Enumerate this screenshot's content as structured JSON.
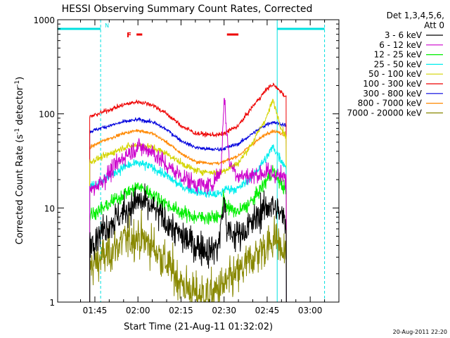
{
  "chart_data": {
    "type": "line",
    "title": "HESSI Observing Summary Count Rates, Corrected",
    "xlabel": "Start Time (21-Aug-11 01:32:02)",
    "ylabel_main": "Corrected Count Rate (s",
    "ylabel_sup1": "-1",
    "ylabel_mid": " detector",
    "ylabel_sup2": "-1",
    "ylabel_end": ")",
    "x_range": [
      "01:32:02",
      "03:10:00"
    ],
    "ylim": [
      1,
      1000
    ],
    "yscale": "log",
    "x_ticks": [
      "01:45",
      "02:00",
      "02:15",
      "02:30",
      "02:45",
      "03:00"
    ],
    "y_ticks": [
      "1",
      "10",
      "100",
      "1000"
    ],
    "legend": {
      "placement": "right",
      "header1": "Det 1,3,4,5,6,",
      "header2": "Att 0",
      "entries": [
        {
          "label": "3 - 6 keV",
          "color": "#000000"
        },
        {
          "label": "6 - 12 keV",
          "color": "#cc00cc"
        },
        {
          "label": "12 - 25 keV",
          "color": "#00ee00"
        },
        {
          "label": "25 - 50 keV",
          "color": "#00eeee"
        },
        {
          "label": "50 - 100 keV",
          "color": "#d4d400"
        },
        {
          "label": "100 - 300 keV",
          "color": "#ee0000"
        },
        {
          "label": "300 - 800 keV",
          "color": "#0000dd"
        },
        {
          "label": "800 - 7000 keV",
          "color": "#ff8800"
        },
        {
          "label": "7000 - 20000 keV",
          "color": "#888800"
        }
      ]
    },
    "annotations": {
      "night_label": "N",
      "flag_label": "F",
      "saa_night_color": "#00e0e0",
      "flag_color": "#ee0000",
      "night_intervals": [
        [
          "01:32:02",
          "01:47:00"
        ],
        [
          "02:48:30",
          "03:05:00"
        ]
      ],
      "daylight_start": "01:47:00",
      "daylight_end": "02:48:30",
      "flag_intervals": [
        [
          "01:59:30",
          "02:01:30"
        ],
        [
          "02:31:00",
          "02:35:00"
        ]
      ]
    },
    "series": [
      {
        "name": "3 - 6 keV",
        "color": "#000000",
        "noise": 0.35,
        "points": [
          [
            "01:42",
            4
          ],
          [
            "01:48",
            6
          ],
          [
            "01:55",
            9
          ],
          [
            "02:00",
            12
          ],
          [
            "02:05",
            10
          ],
          [
            "02:10",
            7
          ],
          [
            "02:15",
            5
          ],
          [
            "02:20",
            4
          ],
          [
            "02:25",
            3.5
          ],
          [
            "02:28",
            4
          ],
          [
            "02:30",
            12
          ],
          [
            "02:31",
            6
          ],
          [
            "02:33",
            5
          ],
          [
            "02:38",
            6
          ],
          [
            "02:43",
            9
          ],
          [
            "02:46",
            11
          ],
          [
            "02:49",
            9
          ],
          [
            "02:52",
            7
          ]
        ]
      },
      {
        "name": "6 - 12 keV",
        "color": "#cc00cc",
        "noise": 0.2,
        "points": [
          [
            "01:42",
            14
          ],
          [
            "01:48",
            20
          ],
          [
            "01:55",
            35
          ],
          [
            "02:00",
            45
          ],
          [
            "02:05",
            40
          ],
          [
            "02:10",
            28
          ],
          [
            "02:15",
            22
          ],
          [
            "02:20",
            18
          ],
          [
            "02:25",
            17
          ],
          [
            "02:29",
            25
          ],
          [
            "02:30",
            160
          ],
          [
            "02:31",
            60
          ],
          [
            "02:32",
            30
          ],
          [
            "02:35",
            22
          ],
          [
            "02:40",
            22
          ],
          [
            "02:45",
            24
          ],
          [
            "02:49",
            22
          ],
          [
            "02:52",
            20
          ]
        ]
      },
      {
        "name": "12 - 25 keV",
        "color": "#00ee00",
        "noise": 0.15,
        "points": [
          [
            "01:42",
            8
          ],
          [
            "01:48",
            10
          ],
          [
            "01:55",
            14
          ],
          [
            "02:00",
            17
          ],
          [
            "02:05",
            14
          ],
          [
            "02:10",
            11
          ],
          [
            "02:15",
            9
          ],
          [
            "02:20",
            8
          ],
          [
            "02:25",
            8
          ],
          [
            "02:29",
            8
          ],
          [
            "02:30",
            14
          ],
          [
            "02:31",
            10
          ],
          [
            "02:35",
            9
          ],
          [
            "02:40",
            12
          ],
          [
            "02:45",
            20
          ],
          [
            "02:47",
            25
          ],
          [
            "02:50",
            18
          ],
          [
            "02:52",
            14
          ]
        ]
      },
      {
        "name": "25 - 50 keV",
        "color": "#00eeee",
        "noise": 0.1,
        "points": [
          [
            "01:42",
            16
          ],
          [
            "01:48",
            20
          ],
          [
            "01:55",
            27
          ],
          [
            "02:00",
            30
          ],
          [
            "02:05",
            27
          ],
          [
            "02:10",
            22
          ],
          [
            "02:15",
            17
          ],
          [
            "02:20",
            15
          ],
          [
            "02:25",
            14
          ],
          [
            "02:29",
            14
          ],
          [
            "02:30",
            16
          ],
          [
            "02:35",
            16
          ],
          [
            "02:40",
            22
          ],
          [
            "02:45",
            35
          ],
          [
            "02:47",
            45
          ],
          [
            "02:50",
            32
          ],
          [
            "02:52",
            26
          ]
        ]
      },
      {
        "name": "50 - 100 keV",
        "color": "#d4d400",
        "noise": 0.07,
        "points": [
          [
            "01:42",
            30
          ],
          [
            "01:48",
            35
          ],
          [
            "01:55",
            44
          ],
          [
            "02:00",
            47
          ],
          [
            "02:05",
            44
          ],
          [
            "02:10",
            38
          ],
          [
            "02:15",
            30
          ],
          [
            "02:20",
            25
          ],
          [
            "02:25",
            24
          ],
          [
            "02:29",
            24
          ],
          [
            "02:30",
            25
          ],
          [
            "02:35",
            30
          ],
          [
            "02:40",
            50
          ],
          [
            "02:45",
            95
          ],
          [
            "02:47",
            140
          ],
          [
            "02:50",
            70
          ],
          [
            "02:52",
            55
          ]
        ]
      },
      {
        "name": "100 - 300 keV",
        "color": "#ee0000",
        "noise": 0.05,
        "points": [
          [
            "01:42",
            90
          ],
          [
            "01:48",
            105
          ],
          [
            "01:55",
            125
          ],
          [
            "02:00",
            135
          ],
          [
            "02:05",
            125
          ],
          [
            "02:10",
            100
          ],
          [
            "02:15",
            75
          ],
          [
            "02:20",
            62
          ],
          [
            "02:25",
            60
          ],
          [
            "02:29",
            60
          ],
          [
            "02:30",
            62
          ],
          [
            "02:35",
            75
          ],
          [
            "02:40",
            120
          ],
          [
            "02:45",
            185
          ],
          [
            "02:47",
            205
          ],
          [
            "02:50",
            170
          ],
          [
            "02:52",
            145
          ]
        ]
      },
      {
        "name": "300 - 800 keV",
        "color": "#0000dd",
        "noise": 0.04,
        "points": [
          [
            "01:42",
            63
          ],
          [
            "01:48",
            72
          ],
          [
            "01:55",
            82
          ],
          [
            "02:00",
            87
          ],
          [
            "02:05",
            82
          ],
          [
            "02:10",
            68
          ],
          [
            "02:15",
            52
          ],
          [
            "02:20",
            44
          ],
          [
            "02:25",
            42
          ],
          [
            "02:29",
            42
          ],
          [
            "02:30",
            43
          ],
          [
            "02:35",
            48
          ],
          [
            "02:40",
            62
          ],
          [
            "02:45",
            78
          ],
          [
            "02:47",
            82
          ],
          [
            "02:50",
            78
          ],
          [
            "02:52",
            75
          ]
        ]
      },
      {
        "name": "800 - 7000 keV",
        "color": "#ff8800",
        "noise": 0.035,
        "points": [
          [
            "01:42",
            42
          ],
          [
            "01:48",
            52
          ],
          [
            "01:55",
            62
          ],
          [
            "02:00",
            67
          ],
          [
            "02:05",
            62
          ],
          [
            "02:10",
            50
          ],
          [
            "02:15",
            38
          ],
          [
            "02:20",
            31
          ],
          [
            "02:25",
            30
          ],
          [
            "02:29",
            30
          ],
          [
            "02:30",
            31
          ],
          [
            "02:35",
            36
          ],
          [
            "02:40",
            48
          ],
          [
            "02:45",
            62
          ],
          [
            "02:47",
            66
          ],
          [
            "02:50",
            62
          ],
          [
            "02:52",
            58
          ]
        ]
      },
      {
        "name": "7000 - 20000 keV",
        "color": "#888800",
        "noise": 0.45,
        "points": [
          [
            "01:42",
            2.2
          ],
          [
            "01:48",
            3
          ],
          [
            "01:55",
            4.5
          ],
          [
            "02:00",
            5
          ],
          [
            "02:05",
            4
          ],
          [
            "02:10",
            2.6
          ],
          [
            "02:15",
            1.6
          ],
          [
            "02:20",
            1.2
          ],
          [
            "02:25",
            1.2
          ],
          [
            "02:30",
            1.5
          ],
          [
            "02:35",
            2
          ],
          [
            "02:40",
            3
          ],
          [
            "02:45",
            4
          ],
          [
            "02:48",
            5
          ],
          [
            "02:50",
            3.5
          ],
          [
            "02:52",
            3
          ]
        ]
      }
    ]
  },
  "footer": {
    "timestamp": "20-Aug-2011 22:20"
  }
}
